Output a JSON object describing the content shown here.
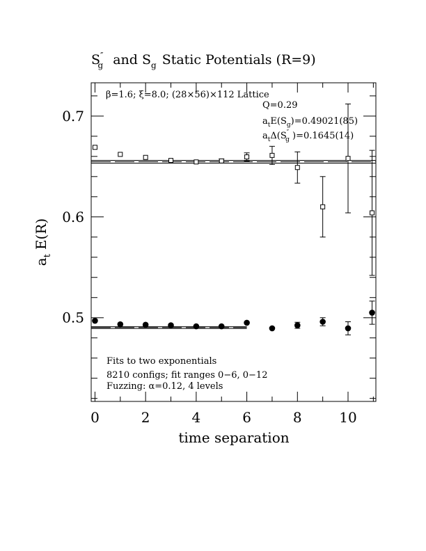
{
  "chart_data": {
    "type": "scatter",
    "title": "S″g  and Sg Static Potentials (R=9)",
    "title_parts": {
      "s1": "S",
      "s1_sup": "″",
      "s1_sub": "g",
      "mid": "and S",
      "s2_sub": "g",
      "rest": "Static Potentials (R=9)"
    },
    "xlabel": "time separation",
    "ylabel_main": "a",
    "ylabel_sub": "t",
    "ylabel_rest": "E(R)",
    "xlim": [
      -0.15,
      11.1
    ],
    "ylim": [
      0.417,
      0.733
    ],
    "x_ticks": [
      0,
      2,
      4,
      6,
      8,
      10
    ],
    "y_ticks": [
      0.5,
      0.6,
      0.7
    ],
    "y_tick_labels": [
      "0.5",
      "0.6",
      "0.7"
    ],
    "x_minor_step": 1,
    "y_minor_step": 0.02,
    "legend_position": "none",
    "series": [
      {
        "marker": "open-square",
        "points": [
          {
            "x": 0,
            "y": 0.669,
            "err": 0.0
          },
          {
            "x": 1,
            "y": 0.662,
            "err": 0.0
          },
          {
            "x": 2,
            "y": 0.659,
            "err": 0.0
          },
          {
            "x": 3,
            "y": 0.656,
            "err": 0.0
          },
          {
            "x": 4,
            "y": 0.6545,
            "err": 0.0
          },
          {
            "x": 5,
            "y": 0.6555,
            "err": 0.002
          },
          {
            "x": 6,
            "y": 0.6595,
            "err": 0.004
          },
          {
            "x": 7,
            "y": 0.661,
            "err": 0.009
          },
          {
            "x": 8,
            "y": 0.649,
            "err": 0.0155
          },
          {
            "x": 9,
            "y": 0.61,
            "err": 0.03
          },
          {
            "x": 10,
            "y": 0.658,
            "err": 0.054
          },
          {
            "x": 10.95,
            "y": 0.604,
            "err": 0.062
          }
        ],
        "fit": {
          "center": 0.6547,
          "err": 0.0014,
          "x_range": [
            0,
            12
          ]
        }
      },
      {
        "marker": "filled-circle",
        "points": [
          {
            "x": 0,
            "y": 0.497,
            "err": 0.0
          },
          {
            "x": 1,
            "y": 0.4935,
            "err": 0.0
          },
          {
            "x": 2,
            "y": 0.493,
            "err": 0.0
          },
          {
            "x": 3,
            "y": 0.4925,
            "err": 0.0
          },
          {
            "x": 4,
            "y": 0.4915,
            "err": 0.0
          },
          {
            "x": 5,
            "y": 0.4915,
            "err": 0.0
          },
          {
            "x": 6,
            "y": 0.495,
            "err": 0.0
          },
          {
            "x": 7,
            "y": 0.4895,
            "err": 0.0
          },
          {
            "x": 8,
            "y": 0.4925,
            "err": 0.003
          },
          {
            "x": 9,
            "y": 0.496,
            "err": 0.004
          },
          {
            "x": 10,
            "y": 0.4895,
            "err": 0.0065
          },
          {
            "x": 10.95,
            "y": 0.505,
            "err": 0.0115
          }
        ],
        "fit": {
          "center": 0.4902,
          "err": 0.00085,
          "x_range": [
            0,
            6
          ]
        }
      }
    ],
    "annotations": {
      "top_left": "β=1.6; ξ=8.0; (28×56)×112 Lattice",
      "q_value": "Q=0.29",
      "energy": {
        "pre": "a",
        "pre_sub": "t",
        "mid": "E(S",
        "mid_sub": "g",
        "post": ")=0.49021(85)"
      },
      "gap": {
        "pre": "a",
        "pre_sub": "t",
        "mid": "Δ(S",
        "mid_sup": "″",
        "mid_sub": "g",
        "post": " )=0.1645(14)"
      },
      "bottom_lines": [
        "Fits to two exponentials",
        "8210 configs; fit ranges 0−6, 0−12",
        "Fuzzing: α=0.12, 4 levels"
      ]
    }
  }
}
